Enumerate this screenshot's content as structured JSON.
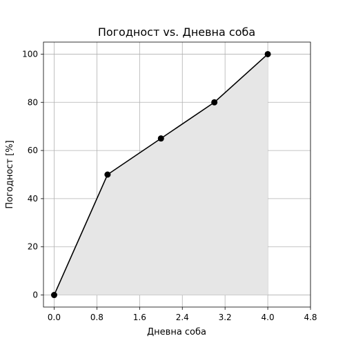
{
  "chart_data": {
    "type": "line",
    "title": "Погодност vs. Дневна соба",
    "xlabel": "Дневна соба",
    "ylabel": "Погодност [%]",
    "x": [
      0,
      1,
      2,
      3,
      4
    ],
    "series": [
      {
        "values": [
          0,
          50,
          65,
          80,
          100
        ]
      }
    ],
    "xlim": [
      -0.2,
      4.8
    ],
    "ylim": [
      -5,
      105
    ],
    "xticks": [
      0.0,
      0.8,
      1.6,
      2.4,
      3.2,
      4.0,
      4.8
    ],
    "xtick_labels": [
      "0.0",
      "0.8",
      "1.6",
      "2.4",
      "3.2",
      "4.0",
      "4.8"
    ],
    "yticks": [
      0,
      20,
      40,
      60,
      80,
      100
    ],
    "ytick_labels": [
      "0",
      "20",
      "40",
      "60",
      "80",
      "100"
    ],
    "grid": true,
    "fill_under": true,
    "colors": {
      "line": "#000000",
      "marker": "#000000",
      "fill": "#e6e6e6",
      "grid": "#b0b0b0",
      "axes": "#000000"
    }
  }
}
